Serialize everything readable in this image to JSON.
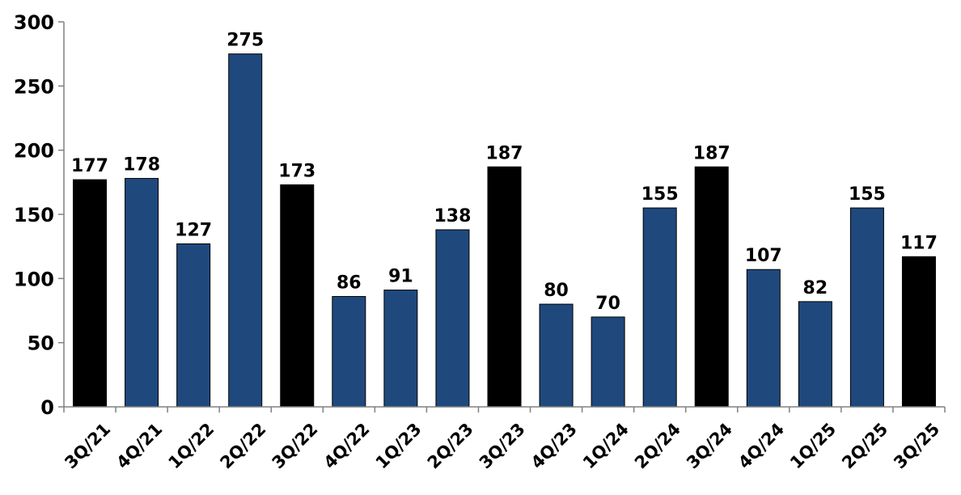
{
  "chart_data": {
    "type": "bar",
    "title": "",
    "xlabel": "",
    "ylabel": "",
    "ylim": [
      0,
      300
    ],
    "yticks": [
      0,
      50,
      100,
      150,
      200,
      250,
      300
    ],
    "grid": false,
    "legend": "none",
    "categories": [
      "3Q/21",
      "4Q/21",
      "1Q/22",
      "2Q/22",
      "3Q/22",
      "4Q/22",
      "1Q/23",
      "2Q/23",
      "3Q/23",
      "4Q/23",
      "1Q/24",
      "2Q/24",
      "3Q/24",
      "4Q/24",
      "1Q/25",
      "2Q/25",
      "3Q/25"
    ],
    "values": [
      177,
      178,
      127,
      275,
      173,
      86,
      91,
      138,
      187,
      80,
      70,
      155,
      187,
      107,
      82,
      155,
      117
    ],
    "highlighted": [
      true,
      false,
      false,
      false,
      true,
      false,
      false,
      false,
      true,
      false,
      false,
      false,
      true,
      false,
      false,
      false,
      true
    ],
    "colors": {
      "default": "#1F497D",
      "highlight": "#000000",
      "axis": "#808080"
    }
  }
}
